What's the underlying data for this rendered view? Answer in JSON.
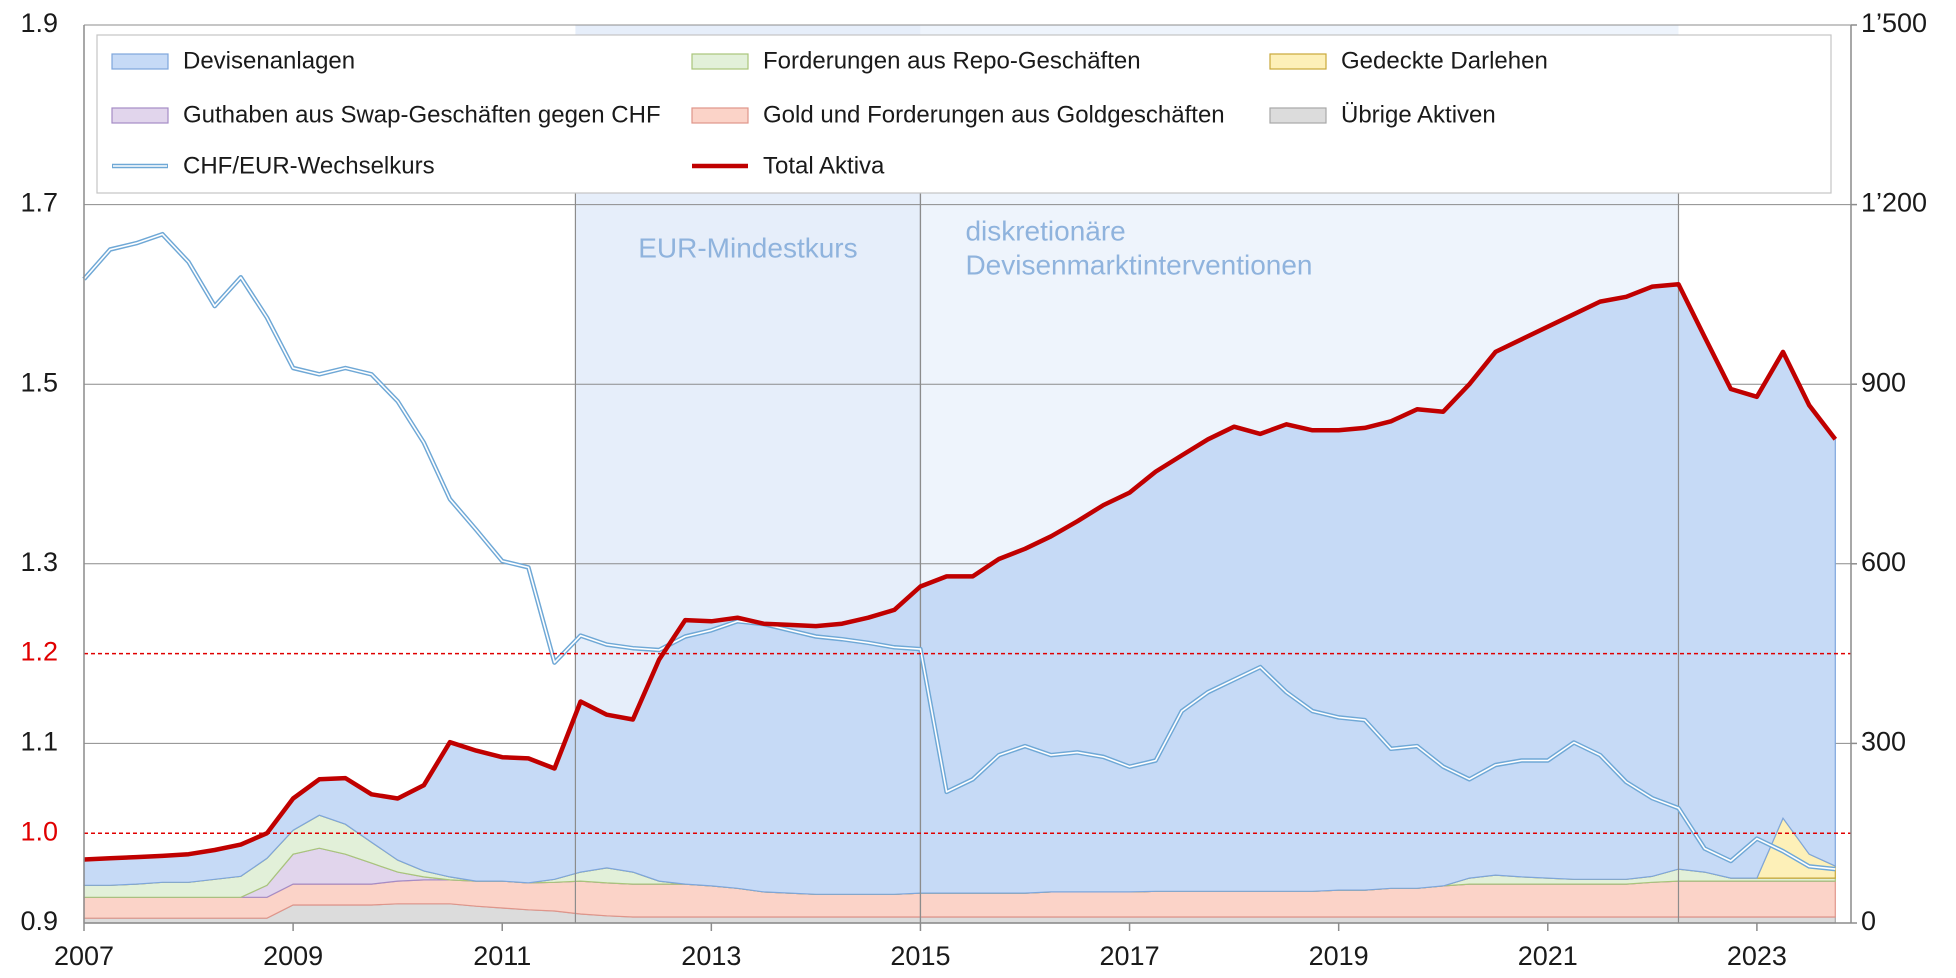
{
  "chart_data": {
    "type": "area",
    "xlim": [
      2007,
      2023.9
    ],
    "xticks": [
      2007,
      2009,
      2011,
      2013,
      2015,
      2017,
      2019,
      2021,
      2023
    ],
    "ylim": [
      0.9,
      1.9
    ],
    "yticks": [
      0.9,
      {
        "value": 1.0,
        "label": "1.0"
      },
      1.1,
      1.2,
      1.3,
      1.5,
      1.7,
      1.9
    ],
    "y2lim": [
      0,
      1500
    ],
    "y2ticks": [
      0,
      300,
      600,
      900,
      {
        "value": 1200,
        "label": "1’200"
      },
      {
        "value": 1500,
        "label": "1’500"
      }
    ],
    "hlines": [
      1.0,
      1.2
    ],
    "hline_color": "#e00000",
    "grid": true,
    "legend": "top",
    "annotations": [
      {
        "text": [
          "EUR-Mindestkurs"
        ],
        "x0": 2011.7,
        "x1": 2015.0,
        "color": "#e6eefa"
      },
      {
        "text": [
          "diskretionäre",
          "Devisenmarktinterventionen"
        ],
        "x0": 2015.0,
        "x1": 2022.25,
        "color": "#eef4fc"
      }
    ],
    "x": [
      2007,
      2007.25,
      2007.5,
      2007.75,
      2008,
      2008.25,
      2008.5,
      2008.75,
      2009,
      2009.25,
      2009.5,
      2009.75,
      2010,
      2010.25,
      2010.5,
      2010.75,
      2011,
      2011.25,
      2011.5,
      2011.75,
      2012,
      2012.25,
      2012.5,
      2012.75,
      2013,
      2013.25,
      2013.5,
      2013.75,
      2014,
      2014.25,
      2014.5,
      2014.75,
      2015,
      2015.25,
      2015.5,
      2015.75,
      2016,
      2016.25,
      2016.5,
      2016.75,
      2017,
      2017.25,
      2017.5,
      2017.75,
      2018,
      2018.25,
      2018.5,
      2018.75,
      2019,
      2019.25,
      2019.5,
      2019.75,
      2020,
      2020.25,
      2020.5,
      2020.75,
      2021,
      2021.25,
      2021.5,
      2021.75,
      2022,
      2022.25,
      2022.5,
      2022.75,
      2023,
      2023.25,
      2023.5,
      2023.75
    ],
    "series": [
      {
        "name": "Devisenanlagen",
        "type": "area",
        "axis": "y2",
        "color": "#c6daf6",
        "edge": "#7ea6dc",
        "values": [
          43,
          45,
          45,
          44,
          47,
          49,
          53,
          42,
          53,
          60,
          77,
          80,
          103,
          143,
          225,
          218,
          207,
          208,
          185,
          285,
          256,
          255,
          370,
          441,
          442,
          452,
          448,
          448,
          448,
          452,
          462,
          475,
          512,
          529,
          529,
          558,
          575,
          594,
          619,
          646,
          667,
          701,
          728,
          755,
          776,
          764,
          780,
          770,
          768,
          772,
          780,
          800,
          792,
          825,
          874,
          898,
          921,
          944,
          965,
          973,
          985,
          977,
          894,
          817,
          804,
          779,
          750,
          713
        ]
      },
      {
        "name": "Forderungen aus Repo-Geschäften",
        "type": "area",
        "axis": "y2",
        "color": "#e2f0d9",
        "edge": "#a9c57a",
        "values": [
          20,
          20,
          22,
          25,
          25,
          30,
          35,
          45,
          40,
          55,
          50,
          35,
          20,
          10,
          5,
          0,
          0,
          0,
          5,
          15,
          25,
          20,
          5,
          0,
          0,
          0,
          0,
          0,
          0,
          0,
          0,
          0,
          0,
          0,
          0,
          0,
          0,
          0,
          0,
          0,
          0,
          0,
          0,
          0,
          0,
          0,
          0,
          0,
          0,
          0,
          0,
          0,
          0,
          10,
          15,
          12,
          10,
          8,
          8,
          8,
          10,
          20,
          15,
          5,
          5,
          5,
          5,
          5
        ]
      },
      {
        "name": "Gedeckte Darlehen",
        "type": "area",
        "axis": "y2",
        "color": "#fdf0b8",
        "edge": "#c9a83a",
        "values": [
          0,
          0,
          0,
          0,
          0,
          0,
          0,
          0,
          0,
          0,
          0,
          0,
          0,
          0,
          0,
          0,
          0,
          0,
          0,
          0,
          0,
          0,
          0,
          0,
          0,
          0,
          0,
          0,
          0,
          0,
          0,
          0,
          0,
          0,
          0,
          0,
          0,
          0,
          0,
          0,
          0,
          0,
          0,
          0,
          0,
          0,
          0,
          0,
          0,
          0,
          0,
          0,
          0,
          0,
          0,
          0,
          0,
          0,
          0,
          0,
          0,
          0,
          0,
          0,
          0,
          100,
          40,
          20
        ]
      },
      {
        "name": "Guthaben aus Swap-Geschäften gegen CHF",
        "type": "area",
        "axis": "y2",
        "color": "#e1d5ec",
        "edge": "#a58cc6",
        "values": [
          0,
          0,
          0,
          0,
          0,
          0,
          0,
          20,
          50,
          60,
          50,
          35,
          15,
          5,
          0,
          0,
          0,
          0,
          0,
          0,
          0,
          0,
          0,
          0,
          0,
          0,
          0,
          0,
          0,
          0,
          0,
          0,
          0,
          0,
          0,
          0,
          0,
          0,
          0,
          0,
          0,
          0,
          0,
          0,
          0,
          0,
          0,
          0,
          0,
          0,
          0,
          0,
          0,
          0,
          0,
          0,
          0,
          0,
          0,
          0,
          0,
          0,
          0,
          0,
          0,
          0,
          0,
          0
        ]
      },
      {
        "name": "Gold und Forderungen aus Goldgeschäften",
        "type": "area",
        "axis": "y2",
        "color": "#fbd3c8",
        "edge": "#e0958a",
        "values": [
          35,
          35,
          35,
          35,
          35,
          35,
          35,
          35,
          35,
          35,
          35,
          35,
          38,
          40,
          40,
          42,
          45,
          45,
          48,
          55,
          55,
          55,
          55,
          55,
          52,
          48,
          42,
          40,
          38,
          38,
          38,
          38,
          40,
          40,
          40,
          40,
          40,
          42,
          42,
          42,
          42,
          43,
          43,
          43,
          43,
          43,
          43,
          43,
          45,
          45,
          48,
          48,
          52,
          55,
          55,
          55,
          55,
          55,
          55,
          55,
          58,
          60,
          60,
          60,
          60,
          60,
          60,
          60
        ]
      },
      {
        "name": "Übrige Aktiven",
        "type": "area",
        "axis": "y2",
        "color": "#dcdcdc",
        "edge": "#a8a8a8",
        "values": [
          8,
          8,
          8,
          8,
          8,
          8,
          8,
          8,
          30,
          30,
          30,
          30,
          32,
          32,
          32,
          28,
          25,
          22,
          20,
          15,
          12,
          10,
          10,
          10,
          10,
          10,
          10,
          10,
          10,
          10,
          10,
          10,
          10,
          10,
          10,
          10,
          10,
          10,
          10,
          10,
          10,
          10,
          10,
          10,
          10,
          10,
          10,
          10,
          10,
          10,
          10,
          10,
          10,
          10,
          10,
          10,
          10,
          10,
          10,
          10,
          10,
          10,
          10,
          10,
          10,
          10,
          10,
          10
        ]
      },
      {
        "name": "CHF/EUR-Wechselkurs",
        "type": "line",
        "axis": "y",
        "color": "#6fa8d6",
        "values": [
          1.617,
          1.65,
          1.657,
          1.667,
          1.636,
          1.587,
          1.619,
          1.574,
          1.518,
          1.511,
          1.518,
          1.511,
          1.481,
          1.435,
          1.372,
          1.338,
          1.303,
          1.296,
          1.19,
          1.22,
          1.21,
          1.206,
          1.204,
          1.219,
          1.226,
          1.236,
          1.233,
          1.226,
          1.219,
          1.216,
          1.212,
          1.207,
          1.205,
          1.046,
          1.06,
          1.087,
          1.097,
          1.087,
          1.09,
          1.085,
          1.074,
          1.081,
          1.136,
          1.157,
          1.171,
          1.185,
          1.157,
          1.136,
          1.129,
          1.126,
          1.094,
          1.097,
          1.074,
          1.06,
          1.076,
          1.081,
          1.081,
          1.101,
          1.087,
          1.057,
          1.039,
          1.028,
          0.983,
          0.969,
          0.994,
          0.98,
          0.963,
          0.96
        ]
      },
      {
        "name": "Total Aktiva",
        "type": "line",
        "axis": "y2",
        "color": "#c00000",
        "values": [
          106,
          108,
          110,
          112,
          115,
          122,
          131,
          150,
          208,
          240,
          242,
          215,
          208,
          230,
          302,
          288,
          277,
          275,
          258,
          370,
          348,
          340,
          440,
          506,
          504,
          510,
          500,
          498,
          496,
          500,
          510,
          523,
          562,
          579,
          579,
          608,
          625,
          646,
          671,
          698,
          719,
          754,
          781,
          808,
          829,
          817,
          833,
          823,
          823,
          827,
          838,
          858,
          854,
          900,
          954,
          975,
          996,
          1017,
          1038,
          1046,
          1063,
          1067,
          979,
          892,
          879,
          954,
          865,
          808
        ]
      }
    ]
  }
}
